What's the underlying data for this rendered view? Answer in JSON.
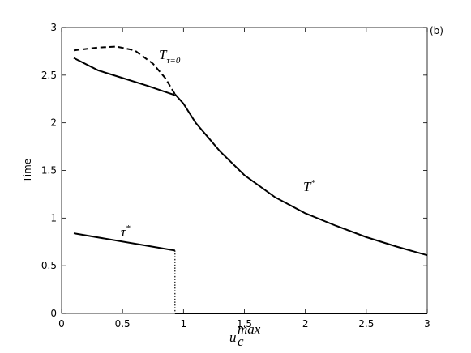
{
  "chart_data": {
    "type": "line",
    "panel_label": "(b)",
    "y_label": "Time",
    "x_label": {
      "text": "u",
      "sub": "c",
      "sup": "max"
    },
    "annotations": [
      {
        "text": "T",
        "sub": "τ=0"
      },
      {
        "text": "T",
        "sup": "*"
      },
      {
        "text": "τ",
        "sup": "*"
      }
    ],
    "xlim": [
      0,
      3
    ],
    "ylim": [
      0,
      3
    ],
    "xticks": [
      0,
      0.5,
      1,
      1.5,
      2,
      2.5,
      3
    ],
    "yticks": [
      0,
      0.5,
      1,
      1.5,
      2,
      2.5,
      3
    ],
    "series": [
      {
        "color": "#000000",
        "style": "solid",
        "x": [
          0.1,
          0.3,
          0.5,
          0.7,
          0.93
        ],
        "values": [
          2.68,
          2.55,
          2.47,
          2.39,
          2.29
        ]
      },
      {
        "color": "#000000",
        "style": "solid",
        "x": [
          0.93,
          1.0,
          1.1,
          1.2,
          1.3,
          1.5,
          1.75,
          2,
          2.25,
          2.5,
          2.75,
          3
        ],
        "values": [
          2.3,
          2.2,
          2.0,
          1.85,
          1.7,
          1.45,
          1.22,
          1.05,
          0.92,
          0.8,
          0.7,
          0.61
        ]
      },
      {
        "color": "#000000",
        "style": "dashed",
        "x": [
          0.1,
          0.3,
          0.45,
          0.6,
          0.75,
          0.85,
          0.93
        ],
        "values": [
          2.76,
          2.79,
          2.8,
          2.76,
          2.62,
          2.47,
          2.3
        ]
      },
      {
        "color": "#000000",
        "style": "solid",
        "x": [
          0.1,
          0.93
        ],
        "values": [
          0.84,
          0.66
        ]
      },
      {
        "color": "#000000",
        "style": "dotted",
        "x": [
          0.93,
          0.93
        ],
        "values": [
          0.66,
          0
        ]
      },
      {
        "color": "#000000",
        "style": "solid",
        "x": [
          0.93,
          3
        ],
        "values": [
          0,
          0
        ]
      }
    ]
  }
}
